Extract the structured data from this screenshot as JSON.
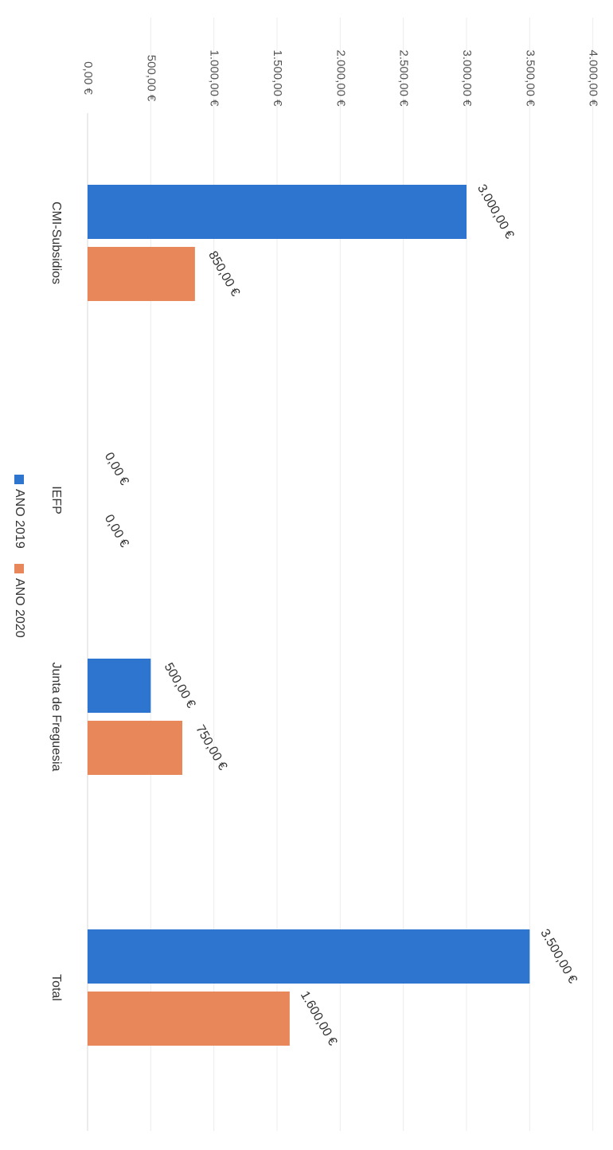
{
  "chart_data": {
    "type": "bar",
    "orientation": "rotated-90-clockwise",
    "categories": [
      "CMI-Subsidios",
      "IEFP",
      "Junta de Freguesia",
      "Total"
    ],
    "series": [
      {
        "name": "ANO 2019",
        "color": "#2e75cf",
        "values": [
          3000,
          0,
          500,
          3500
        ]
      },
      {
        "name": "ANO 2020",
        "color": "#e8875a",
        "values": [
          850,
          0,
          750,
          1600
        ]
      }
    ],
    "data_labels": [
      [
        "3.000,00 €",
        "0,00 €",
        "500,00 €",
        "3.500,00 €"
      ],
      [
        "850,00 €",
        "0,00 €",
        "750,00 €",
        "1.600,00 €"
      ]
    ],
    "ticks": [
      0,
      500,
      1000,
      1500,
      2000,
      2500,
      3000,
      3500,
      4000
    ],
    "tick_labels": [
      "0,00 €",
      "500,00 €",
      "1.000,00 €",
      "1.500,00 €",
      "2.000,00 €",
      "2.500,00 €",
      "3.000,00 €",
      "3.500,00 €",
      "4.000,00 €"
    ],
    "ylim": [
      0,
      4000
    ],
    "grid": true,
    "legend_position": "bottom",
    "title": "",
    "xlabel": "",
    "ylabel": ""
  }
}
